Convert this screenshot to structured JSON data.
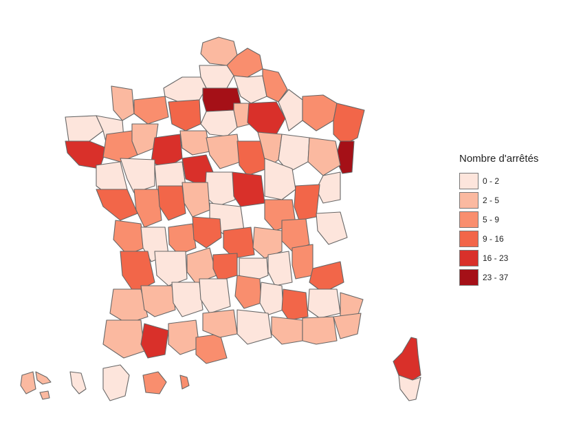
{
  "legend": {
    "title": "Nombre d'arrêtés",
    "classes": [
      {
        "label": "0 - 2",
        "color": "#fde5dc"
      },
      {
        "label": "2 - 5",
        "color": "#fbb9a0"
      },
      {
        "label": "5 - 9",
        "color": "#f98e6e"
      },
      {
        "label": "9 - 16",
        "color": "#f26649"
      },
      {
        "label": "16 - 23",
        "color": "#d9302a"
      },
      {
        "label": "23 - 37",
        "color": "#a51017"
      }
    ]
  },
  "map": {
    "stroke_color": "#666666"
  }
}
